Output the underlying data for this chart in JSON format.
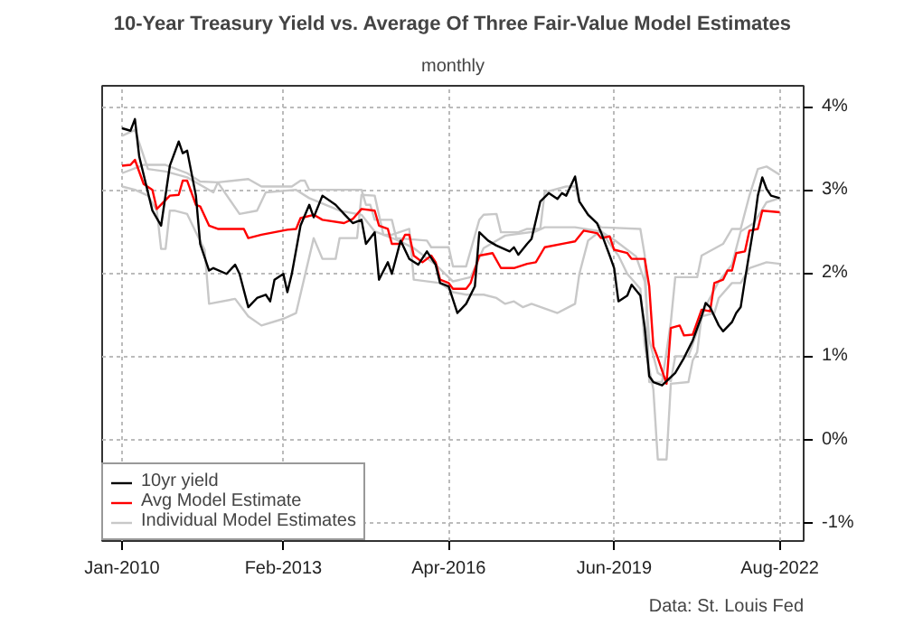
{
  "chart_data": {
    "type": "line",
    "title": "10-Year Treasury Yield vs. Average Of Three Fair-Value Model Estimates",
    "subtitle": "monthly",
    "xlim": [
      "2009-08-15",
      "2023-01-15"
    ],
    "xticks": [
      {
        "value": "2010-01",
        "label": "Jan-2010"
      },
      {
        "value": "2013-02",
        "label": "Feb-2013"
      },
      {
        "value": "2016-04",
        "label": "Apr-2016"
      },
      {
        "value": "2019-06",
        "label": "Jun-2019"
      },
      {
        "value": "2022-08",
        "label": "Aug-2022"
      }
    ],
    "ylim": [
      -1.22,
      4.25
    ],
    "yticks": [
      {
        "value": -1,
        "label": "-1%"
      },
      {
        "value": 0,
        "label": "0%"
      },
      {
        "value": 1,
        "label": "1%"
      },
      {
        "value": 2,
        "label": "2%"
      },
      {
        "value": 3,
        "label": "3%"
      },
      {
        "value": 4,
        "label": "4%"
      }
    ],
    "grid": true,
    "legend": "bottom left",
    "line_style": "solid",
    "marker": "none",
    "annotations": [
      "Data: St. Louis Fed"
    ],
    "series": [
      {
        "name": "10yr yield",
        "color": "#000000",
        "x": [
          "2010-01",
          "2010-03",
          "2010-04",
          "2010-05",
          "2010-08",
          "2010-10",
          "2010-12",
          "2011-02",
          "2011-03",
          "2011-04",
          "2011-06",
          "2011-07",
          "2011-09",
          "2011-10",
          "2012-01",
          "2012-03",
          "2012-04",
          "2012-06",
          "2012-08",
          "2012-10",
          "2012-11",
          "2012-12",
          "2013-02",
          "2013-03",
          "2013-04",
          "2013-06",
          "2013-08",
          "2013-09",
          "2013-11",
          "2014-02",
          "2014-04",
          "2014-06",
          "2014-08",
          "2014-09",
          "2014-11",
          "2014-12",
          "2015-02",
          "2015-03",
          "2015-05",
          "2015-07",
          "2015-09",
          "2015-11",
          "2016-01",
          "2016-02",
          "2016-04",
          "2016-06",
          "2016-08",
          "2016-10",
          "2016-11",
          "2017-01",
          "2017-03",
          "2017-06",
          "2017-07",
          "2017-08",
          "2017-10",
          "2017-11",
          "2018-01",
          "2018-03",
          "2018-05",
          "2018-06",
          "2018-07",
          "2018-09",
          "2018-10",
          "2018-12",
          "2019-02",
          "2019-03",
          "2019-05",
          "2019-06",
          "2019-07",
          "2019-09",
          "2019-10",
          "2019-12",
          "2020-01",
          "2020-02",
          "2020-03",
          "2020-05",
          "2020-08",
          "2020-10",
          "2020-12",
          "2021-02",
          "2021-03",
          "2021-04",
          "2021-06",
          "2021-07",
          "2021-09",
          "2021-10",
          "2021-11",
          "2021-12",
          "2022-02",
          "2022-03",
          "2022-04",
          "2022-05",
          "2022-06",
          "2022-08"
        ],
        "values": [
          3.74,
          3.71,
          3.85,
          3.4,
          2.75,
          2.57,
          3.29,
          3.58,
          3.44,
          3.47,
          2.93,
          2.35,
          2.03,
          2.06,
          1.99,
          2.1,
          1.99,
          1.59,
          1.7,
          1.74,
          1.66,
          1.92,
          1.99,
          1.77,
          1.99,
          2.57,
          2.82,
          2.67,
          2.93,
          2.82,
          2.71,
          2.6,
          2.64,
          2.35,
          2.49,
          1.92,
          2.13,
          1.99,
          2.39,
          2.17,
          2.1,
          2.26,
          2.1,
          1.88,
          1.84,
          1.52,
          1.63,
          1.84,
          2.49,
          2.39,
          2.33,
          2.26,
          2.31,
          2.22,
          2.35,
          2.41,
          2.86,
          2.96,
          2.89,
          2.96,
          2.93,
          3.16,
          2.86,
          2.7,
          2.6,
          2.49,
          2.21,
          2.06,
          1.66,
          1.73,
          1.86,
          1.73,
          1.34,
          0.76,
          0.69,
          0.65,
          0.8,
          0.98,
          1.19,
          1.48,
          1.64,
          1.59,
          1.37,
          1.3,
          1.41,
          1.52,
          1.59,
          1.92,
          2.57,
          2.93,
          3.15,
          3.01,
          2.93,
          2.9
        ]
      },
      {
        "name": "Avg Model Estimate",
        "color": "#ff0000",
        "x": [
          "2010-01",
          "2010-03",
          "2010-04",
          "2010-06",
          "2010-08",
          "2010-09",
          "2010-12",
          "2011-02",
          "2011-03",
          "2011-04",
          "2011-06",
          "2011-07",
          "2011-09",
          "2011-11",
          "2012-05",
          "2012-06",
          "2012-09",
          "2013-03",
          "2013-05",
          "2013-06",
          "2013-09",
          "2013-11",
          "2014-04",
          "2014-06",
          "2014-08",
          "2014-11",
          "2014-12",
          "2015-02",
          "2015-03",
          "2015-05",
          "2015-06",
          "2015-07",
          "2015-08",
          "2015-10",
          "2015-12",
          "2016-01",
          "2016-02",
          "2016-04",
          "2016-05",
          "2016-08",
          "2016-09",
          "2016-11",
          "2017-02",
          "2017-04",
          "2017-07",
          "2017-10",
          "2017-12",
          "2018-02",
          "2018-07",
          "2018-09",
          "2018-11",
          "2019-02",
          "2019-03",
          "2019-05",
          "2019-06",
          "2019-09",
          "2019-10",
          "2020-01",
          "2020-02",
          "2020-03",
          "2020-04",
          "2020-06",
          "2020-07",
          "2020-09",
          "2020-10",
          "2020-12",
          "2021-02",
          "2021-04",
          "2021-05",
          "2021-07",
          "2021-08",
          "2021-09",
          "2021-10",
          "2021-12",
          "2022-01",
          "2022-03",
          "2022-04",
          "2022-08"
        ],
        "values": [
          3.29,
          3.3,
          3.36,
          3.07,
          3.0,
          2.77,
          2.93,
          2.94,
          3.11,
          3.11,
          2.82,
          2.8,
          2.57,
          2.53,
          2.53,
          2.42,
          2.46,
          2.52,
          2.53,
          2.66,
          2.7,
          2.64,
          2.6,
          2.65,
          2.77,
          2.75,
          2.57,
          2.53,
          2.35,
          2.35,
          2.46,
          2.46,
          2.21,
          2.13,
          2.21,
          2.13,
          1.92,
          1.88,
          1.81,
          1.81,
          1.88,
          2.21,
          2.24,
          2.06,
          2.06,
          2.11,
          2.13,
          2.31,
          2.36,
          2.38,
          2.51,
          2.48,
          2.42,
          2.44,
          2.28,
          2.24,
          2.17,
          2.17,
          1.84,
          1.12,
          0.98,
          0.67,
          1.34,
          1.37,
          1.25,
          1.26,
          1.56,
          1.54,
          1.88,
          1.92,
          2.03,
          2.03,
          2.24,
          2.26,
          2.51,
          2.53,
          2.75,
          2.73
        ]
      },
      {
        "name": "Individual Model Estimates",
        "color": "#c8c8c8",
        "x": [
          "2010-01",
          "2010-04",
          "2010-07",
          "2010-11",
          "2011-04",
          "2011-10",
          "2011-11",
          "2012-06",
          "2012-09",
          "2013-04",
          "2013-06",
          "2013-07",
          "2013-08",
          "2014-08",
          "2014-09",
          "2014-10",
          "2014-11",
          "2015-03",
          "2015-04",
          "2015-11",
          "2015-12",
          "2016-04",
          "2016-05",
          "2016-08",
          "2016-11",
          "2016-12",
          "2017-03",
          "2017-04",
          "2017-08",
          "2017-10",
          "2018-01",
          "2018-02",
          "2018-07",
          "2018-09",
          "2018-10",
          "2018-12",
          "2019-03",
          "2019-12",
          "2020-01",
          "2020-02",
          "2020-05",
          "2020-07",
          "2020-08",
          "2021-01",
          "2021-02",
          "2021-07",
          "2021-09",
          "2021-11",
          "2022-01",
          "2022-03",
          "2022-05",
          "2022-08"
        ],
        "values": [
          3.65,
          3.72,
          3.25,
          3.22,
          3.15,
          2.97,
          3.09,
          3.13,
          3.04,
          3.04,
          3.11,
          3.11,
          3.0,
          3.0,
          2.82,
          2.82,
          2.64,
          2.64,
          2.42,
          2.39,
          2.31,
          2.31,
          2.08,
          2.08,
          2.64,
          2.7,
          2.71,
          2.49,
          2.49,
          2.53,
          2.53,
          2.97,
          3.04,
          3.04,
          2.86,
          2.71,
          2.55,
          2.53,
          2.21,
          0.69,
          0.69,
          1.41,
          1.95,
          1.95,
          2.21,
          2.35,
          2.53,
          2.53,
          2.93,
          3.25,
          3.28,
          3.18
        ]
      },
      {
        "color": "#c8c8c8",
        "x": [
          "2010-01",
          "2010-04",
          "2010-07",
          "2010-09",
          "2010-10",
          "2010-11",
          "2010-12",
          "2011-01",
          "2011-04",
          "2011-06",
          "2011-08",
          "2011-09",
          "2012-03",
          "2012-06",
          "2012-09",
          "2013-02",
          "2013-05",
          "2013-09",
          "2013-11",
          "2014-02",
          "2014-03",
          "2014-07",
          "2014-08",
          "2014-11",
          "2015-01",
          "2015-03",
          "2015-07",
          "2015-08",
          "2016-02",
          "2016-05",
          "2016-08",
          "2016-12",
          "2017-03",
          "2017-05",
          "2017-07",
          "2017-09",
          "2017-11",
          "2018-05",
          "2018-09",
          "2018-10",
          "2018-12",
          "2019-03",
          "2019-05",
          "2019-07",
          "2019-09",
          "2019-12",
          "2020-01",
          "2020-03",
          "2020-04",
          "2020-06",
          "2020-07",
          "2020-11",
          "2020-12",
          "2021-01",
          "2021-02",
          "2021-05",
          "2021-06",
          "2021-09",
          "2021-11",
          "2022-01",
          "2022-05",
          "2022-08"
        ],
        "values": [
          3.04,
          3.0,
          2.93,
          2.75,
          2.29,
          2.29,
          2.75,
          2.75,
          2.71,
          2.49,
          2.28,
          1.63,
          1.69,
          1.48,
          1.37,
          1.45,
          1.52,
          2.42,
          2.17,
          2.17,
          2.42,
          2.42,
          2.94,
          2.93,
          2.46,
          2.46,
          2.53,
          1.92,
          1.88,
          1.77,
          1.74,
          1.74,
          1.7,
          1.63,
          1.66,
          1.59,
          1.63,
          1.52,
          1.63,
          1.99,
          2.39,
          2.51,
          2.35,
          2.21,
          1.99,
          1.81,
          1.12,
          0.6,
          -0.24,
          -0.24,
          0.67,
          0.69,
          0.95,
          1.05,
          1.48,
          1.52,
          1.7,
          1.88,
          1.88,
          2.06,
          2.13,
          2.11
        ]
      },
      {
        "color": "#c8c8c8",
        "x": [
          "2010-01",
          "2010-06",
          "2010-11",
          "2011-04",
          "2011-07",
          "2011-11",
          "2012-04",
          "2012-08",
          "2012-10",
          "2013-05",
          "2013-08",
          "2014-03",
          "2014-08",
          "2014-11",
          "2015-04",
          "2015-08",
          "2016-01",
          "2016-05",
          "2016-09",
          "2016-12",
          "2017-05",
          "2017-12",
          "2018-02",
          "2018-09",
          "2019-03",
          "2019-06",
          "2019-11",
          "2020-01",
          "2020-02",
          "2020-04",
          "2020-07",
          "2020-08",
          "2020-11",
          "2021-01",
          "2021-03",
          "2021-06",
          "2021-09",
          "2021-11",
          "2022-02",
          "2022-05",
          "2022-08"
        ],
        "values": [
          3.2,
          3.3,
          3.3,
          3.2,
          3.1,
          3.09,
          2.71,
          2.75,
          2.97,
          3.0,
          2.9,
          2.75,
          2.7,
          2.5,
          2.4,
          2.3,
          2.1,
          1.9,
          1.95,
          2.3,
          2.45,
          2.5,
          2.55,
          2.55,
          2.5,
          2.4,
          2.2,
          1.9,
          1.2,
          0.8,
          0.7,
          1.0,
          1.0,
          1.3,
          1.6,
          1.9,
          2.1,
          2.5,
          2.6,
          2.85,
          2.9
        ]
      }
    ]
  }
}
